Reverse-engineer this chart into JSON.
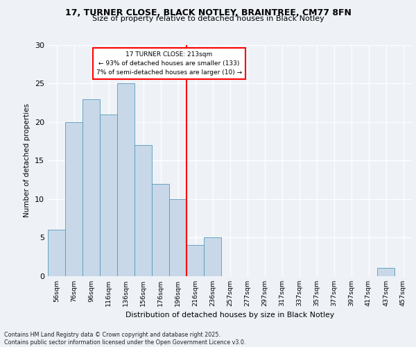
{
  "title1": "17, TURNER CLOSE, BLACK NOTLEY, BRAINTREE, CM77 8FN",
  "title2": "Size of property relative to detached houses in Black Notley",
  "xlabel": "Distribution of detached houses by size in Black Notley",
  "ylabel": "Number of detached properties",
  "categories": [
    "56sqm",
    "76sqm",
    "96sqm",
    "116sqm",
    "136sqm",
    "156sqm",
    "176sqm",
    "196sqm",
    "216sqm",
    "236sqm",
    "257sqm",
    "277sqm",
    "297sqm",
    "317sqm",
    "337sqm",
    "357sqm",
    "377sqm",
    "397sqm",
    "417sqm",
    "437sqm",
    "457sqm"
  ],
  "values": [
    6,
    20,
    23,
    21,
    25,
    17,
    12,
    10,
    4,
    5,
    0,
    0,
    0,
    0,
    0,
    0,
    0,
    0,
    0,
    1,
    0
  ],
  "bar_color": "#c8d8e8",
  "bar_edge_color": "#5599bb",
  "reference_line_index": 8,
  "annotation_title": "17 TURNER CLOSE: 213sqm",
  "annotation_line1": "← 93% of detached houses are smaller (133)",
  "annotation_line2": "7% of semi-detached houses are larger (10) →",
  "ylim": [
    0,
    30
  ],
  "yticks": [
    0,
    5,
    10,
    15,
    20,
    25,
    30
  ],
  "footer1": "Contains HM Land Registry data © Crown copyright and database right 2025.",
  "footer2": "Contains public sector information licensed under the Open Government Licence v3.0.",
  "bg_color": "#eef2f7"
}
